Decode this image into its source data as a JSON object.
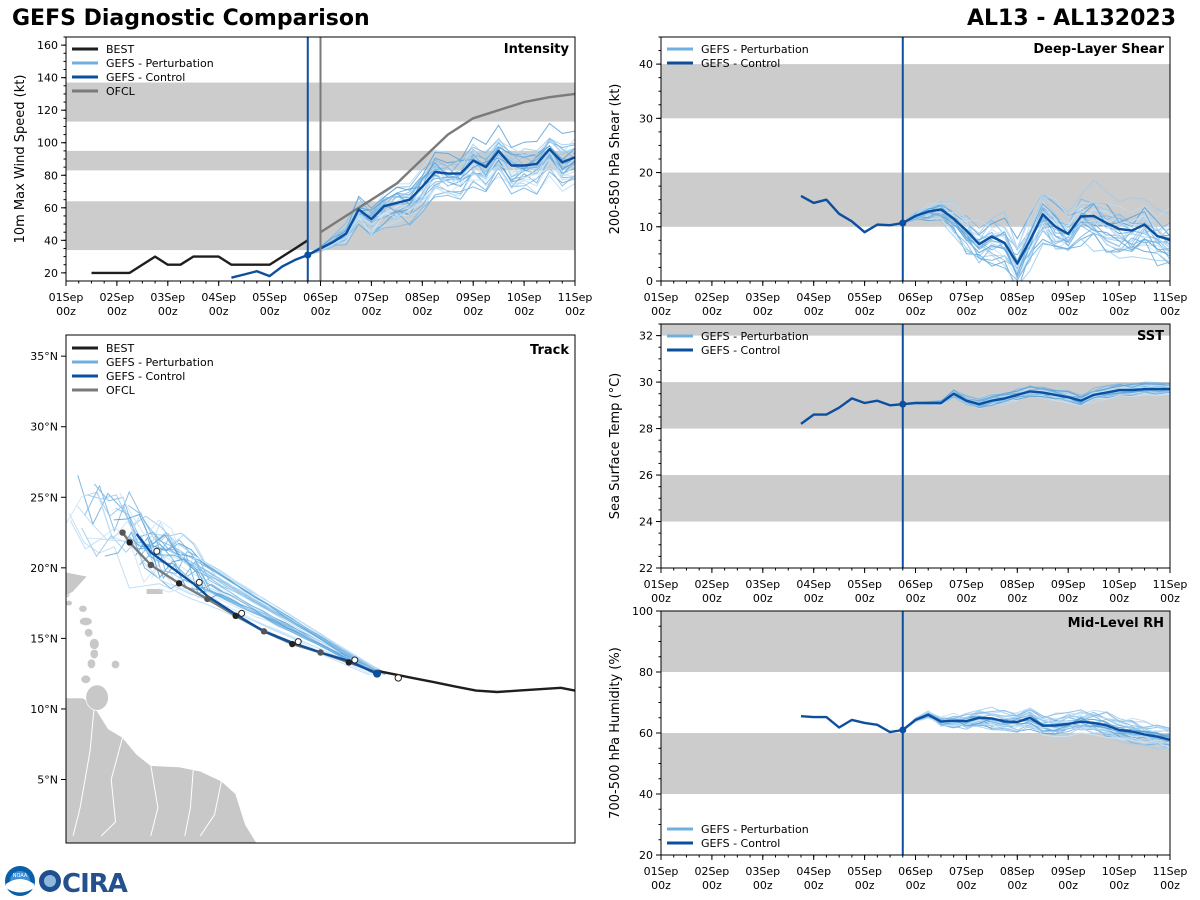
{
  "header": {
    "title": "GEFS Diagnostic Comparison",
    "storm": "AL13 - AL132023"
  },
  "logos": {
    "left": "NOAA",
    "right": "CIRA"
  },
  "colors": {
    "best": "#1e1e1e",
    "perturbation": "#6fb0df",
    "control": "#0b4f9e",
    "ofcl": "#7a7a7a",
    "band": "#cccccc",
    "land": "#c8c8c8"
  },
  "time_axis": {
    "ticks": [
      "01Sep",
      "02Sep",
      "03Sep",
      "04Sep",
      "05Sep",
      "06Sep",
      "07Sep",
      "08Sep",
      "09Sep",
      "10Sep",
      "11Sep"
    ],
    "sub": "00z",
    "range_days": [
      0,
      10
    ],
    "analysis_day": 4.75,
    "ofcl_day": 5.0
  },
  "chart_data": [
    {
      "id": "intensity",
      "type": "line",
      "title": "Intensity",
      "ylabel": "10m Max Wind Speed (kt)",
      "ylim": [
        15,
        165
      ],
      "yticks": [
        20,
        40,
        60,
        80,
        100,
        120,
        140,
        160
      ],
      "bands": [
        [
          34,
          64
        ],
        [
          83,
          95
        ],
        [
          113,
          137
        ]
      ],
      "legend": [
        "BEST",
        "GEFS - Perturbation",
        "GEFS - Control",
        "OFCL"
      ],
      "series": [
        {
          "name": "BEST",
          "x": [
            0.5,
            1.25,
            1.75,
            2.0,
            2.25,
            2.5,
            3.0,
            3.25,
            3.5,
            4.0,
            4.25,
            4.5,
            4.75
          ],
          "values": [
            20,
            20,
            30,
            25,
            25,
            30,
            30,
            25,
            25,
            25,
            30,
            35,
            40
          ]
        },
        {
          "name": "OFCL",
          "x": [
            5.0,
            5.5,
            6.0,
            6.5,
            7.0,
            7.5,
            8.0,
            8.5,
            9.0,
            9.5,
            10.0
          ],
          "values": [
            45,
            55,
            65,
            75,
            90,
            105,
            115,
            120,
            125,
            128,
            130
          ]
        },
        {
          "name": "GEFS - Control",
          "x": [
            3.25,
            3.5,
            3.75,
            4.0,
            4.25,
            4.5,
            4.75,
            5.0,
            5.25,
            5.5,
            5.75,
            6.0,
            6.25,
            6.5,
            6.75,
            7.0,
            7.25,
            7.5,
            7.75,
            8.0,
            8.25,
            8.5,
            8.75,
            9.0,
            9.25,
            9.5,
            9.75,
            10.0
          ],
          "values": [
            17,
            19,
            21,
            18,
            24,
            28,
            31,
            35,
            39,
            44,
            59,
            53,
            61,
            63,
            65,
            73,
            82,
            81,
            81,
            89,
            85,
            95,
            86,
            86,
            87,
            96,
            88,
            91
          ]
        }
      ],
      "perturbation": {
        "members": 30,
        "spread": 14
      }
    },
    {
      "id": "shear",
      "type": "line",
      "title": "Deep-Layer Shear",
      "ylabel": "200-850 hPa Shear (kt)",
      "ylim": [
        0,
        45
      ],
      "yticks": [
        0,
        10,
        20,
        30,
        40
      ],
      "bands": [
        [
          10,
          20
        ],
        [
          30,
          40
        ]
      ],
      "legend": [
        "GEFS - Perturbation",
        "GEFS - Control"
      ],
      "series": [
        {
          "name": "GEFS - Control",
          "x": [
            2.75,
            3.0,
            3.25,
            3.5,
            3.75,
            4.0,
            4.25,
            4.5,
            4.75,
            5.0,
            5.25,
            5.5,
            5.75,
            6.0,
            6.25,
            6.5,
            6.75,
            7.0,
            7.25,
            7.5,
            7.75,
            8.0,
            8.25,
            8.5,
            8.75,
            9.0,
            9.25,
            9.5,
            9.75,
            10.0
          ],
          "values": [
            15.7,
            14.4,
            15.0,
            12.4,
            11.0,
            9.0,
            10.4,
            10.3,
            10.7,
            12.0,
            12.8,
            13.2,
            11.5,
            9.3,
            6.8,
            8.2,
            7.0,
            3.2,
            7.5,
            12.3,
            10.0,
            8.7,
            11.9,
            12.0,
            10.7,
            9.6,
            9.3,
            10.4,
            8.3,
            7.6
          ]
        }
      ],
      "perturbation": {
        "members": 30,
        "spread": 5
      }
    },
    {
      "id": "sst",
      "type": "line",
      "title": "SST",
      "ylabel": "Sea Surface Temp (°C)",
      "ylim": [
        22,
        32.5
      ],
      "yticks": [
        22,
        24,
        26,
        28,
        30,
        32
      ],
      "bands": [
        [
          24,
          26
        ],
        [
          28,
          30
        ],
        [
          32,
          33
        ]
      ],
      "legend": [
        "GEFS - Perturbation",
        "GEFS - Control"
      ],
      "series": [
        {
          "name": "GEFS - Control",
          "x": [
            2.75,
            3.0,
            3.25,
            3.5,
            3.75,
            4.0,
            4.25,
            4.5,
            4.75,
            5.0,
            5.25,
            5.5,
            5.75,
            6.0,
            6.25,
            6.5,
            6.75,
            7.0,
            7.25,
            7.5,
            7.75,
            8.0,
            8.25,
            8.5,
            8.75,
            9.0,
            9.25,
            9.5,
            9.75,
            10.0
          ],
          "values": [
            28.2,
            28.6,
            28.6,
            28.9,
            29.3,
            29.1,
            29.2,
            29.0,
            29.05,
            29.1,
            29.1,
            29.1,
            29.5,
            29.2,
            29.05,
            29.2,
            29.3,
            29.45,
            29.6,
            29.55,
            29.45,
            29.35,
            29.2,
            29.45,
            29.55,
            29.65,
            29.65,
            29.7,
            29.7,
            29.7
          ]
        }
      ],
      "perturbation": {
        "members": 30,
        "spread": 0.25
      }
    },
    {
      "id": "rh",
      "type": "line",
      "title": "Mid-Level RH",
      "ylabel": "700-500 hPa Humidity (%)",
      "ylim": [
        20,
        100
      ],
      "yticks": [
        20,
        40,
        60,
        80,
        100
      ],
      "bands": [
        [
          40,
          60
        ],
        [
          80,
          100
        ]
      ],
      "legend": [
        "GEFS - Perturbation",
        "GEFS - Control"
      ],
      "series": [
        {
          "name": "GEFS - Control",
          "x": [
            2.75,
            3.0,
            3.25,
            3.5,
            3.75,
            4.0,
            4.25,
            4.5,
            4.75,
            5.0,
            5.25,
            5.5,
            5.75,
            6.0,
            6.25,
            6.5,
            6.75,
            7.0,
            7.25,
            7.5,
            7.75,
            8.0,
            8.25,
            8.5,
            8.75,
            9.0,
            9.25,
            9.5,
            9.75,
            10.0
          ],
          "values": [
            65.5,
            65.2,
            65.2,
            61.8,
            64.3,
            63.3,
            62.7,
            60.3,
            61.0,
            64.3,
            66.0,
            63.8,
            64.0,
            63.9,
            65.0,
            64.8,
            63.8,
            63.6,
            65.0,
            62.4,
            62.5,
            63.0,
            63.7,
            63.3,
            62.5,
            61.0,
            60.5,
            59.5,
            58.8,
            57.8
          ]
        }
      ],
      "perturbation": {
        "members": 30,
        "spread": 4
      }
    },
    {
      "id": "track",
      "type": "scatter",
      "title": "Track",
      "lat_range": [
        0.5,
        36.5
      ],
      "lon_range": [
        -63.0,
        -27.0
      ],
      "lat_ticks": [
        "5°N",
        "10°N",
        "15°N",
        "20°N",
        "25°N",
        "30°N",
        "35°N"
      ],
      "lat_tick_values": [
        5,
        10,
        15,
        20,
        25,
        30,
        35
      ],
      "legend": [
        "BEST",
        "GEFS - Perturbation",
        "GEFS - Control",
        "OFCL"
      ],
      "best": {
        "lon": [
          -41.0,
          -40.0,
          -38.5,
          -37.0,
          -35.5,
          -34.0,
          -32.5,
          -31.0,
          -29.5,
          -28.0,
          -27.0
        ],
        "lat": [
          12.7,
          12.5,
          12.2,
          11.9,
          11.6,
          11.3,
          11.2,
          11.3,
          11.4,
          11.5,
          11.3
        ]
      },
      "ofcl": {
        "lon": [
          -41.0,
          -43.0,
          -45.0,
          -47.0,
          -49.0,
          -51.0,
          -53.0,
          -55.0,
          -57.0,
          -58.5,
          -59.0
        ],
        "lat": [
          12.6,
          13.3,
          14.0,
          14.6,
          15.5,
          16.6,
          17.8,
          18.9,
          20.2,
          21.8,
          22.5
        ]
      },
      "control": {
        "lon": [
          -41.0,
          -43.0,
          -45.0,
          -47.0,
          -49.0,
          -51.0,
          -53.0,
          -54.0,
          -55.5,
          -57.0,
          -58.0
        ],
        "lat": [
          12.5,
          13.4,
          14.0,
          14.7,
          15.5,
          16.7,
          18.0,
          18.9,
          20.0,
          21.1,
          22.4
        ]
      },
      "perturbation": {
        "members": 30
      }
    }
  ]
}
